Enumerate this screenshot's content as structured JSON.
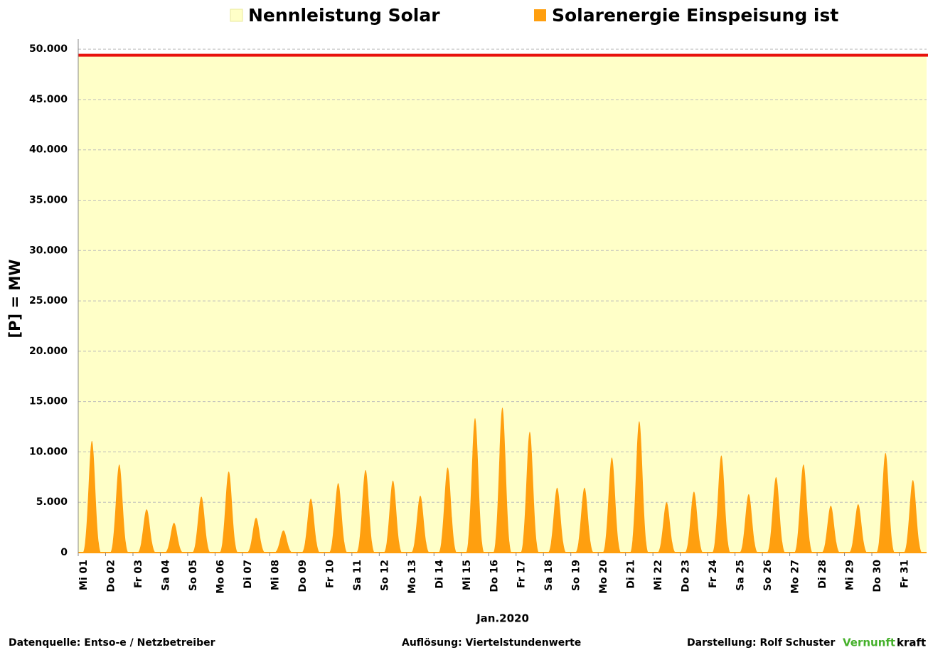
{
  "chart_data": {
    "type": "area",
    "legend": [
      "Nennleistung Solar",
      "Solarenergie Einspeisung ist"
    ],
    "y_label": "[P]  =  MW",
    "x_label": "Jan.2020",
    "categories": [
      "Mi 01",
      "Do 02",
      "Fr 03",
      "Sa 04",
      "So 05",
      "Mo 06",
      "Di 07",
      "Mi 08",
      "Do 09",
      "Fr 10",
      "Sa 11",
      "So 12",
      "Mo 13",
      "Di 14",
      "Mi 15",
      "Do 16",
      "Fr 17",
      "Sa 18",
      "So 19",
      "Mo 20",
      "Di 21",
      "Mi 22",
      "Do 23",
      "Fr 24",
      "Sa 25",
      "So 26",
      "Mo 27",
      "Di 28",
      "Mi 29",
      "Do 30",
      "Fr 31"
    ],
    "capacity": {
      "name": "Nennleistung Solar",
      "value": 49400,
      "fill": "#ffffc8",
      "line_color": "#e8120c"
    },
    "series": [
      {
        "name": "Solarenergie Einspeisung ist",
        "color": "#ff9f0f",
        "values": [
          11100,
          8750,
          4300,
          2950,
          5550,
          8050,
          3450,
          2200,
          5350,
          6900,
          8200,
          7150,
          5650,
          8450,
          13350,
          14400,
          12000,
          6450,
          6450,
          9450,
          13050,
          5000,
          6050,
          9650,
          5800,
          7500,
          8750,
          4650,
          4800,
          9900,
          7200
        ]
      }
    ],
    "ylim": [
      0,
      51000
    ],
    "yticks": [
      {
        "value": 0,
        "label": "0"
      },
      {
        "value": 5000,
        "label": "5.000"
      },
      {
        "value": 10000,
        "label": "10.000"
      },
      {
        "value": 15000,
        "label": "15.000"
      },
      {
        "value": 20000,
        "label": "20.000"
      },
      {
        "value": 25000,
        "label": "25.000"
      },
      {
        "value": 30000,
        "label": "30.000"
      },
      {
        "value": 35000,
        "label": "35.000"
      },
      {
        "value": 40000,
        "label": "40.000"
      },
      {
        "value": 45000,
        "label": "45.000"
      },
      {
        "value": 50000,
        "label": "50.000"
      }
    ],
    "grid": true
  },
  "footer": {
    "source": "Datenquelle:  Entso-e  / Netzbetreiber",
    "resolution": "Auflösung: Viertelstundenwerte",
    "author": "Darstellung:  Rolf Schuster",
    "brand_green": "Vernunft",
    "brand_rest": "kraft"
  }
}
